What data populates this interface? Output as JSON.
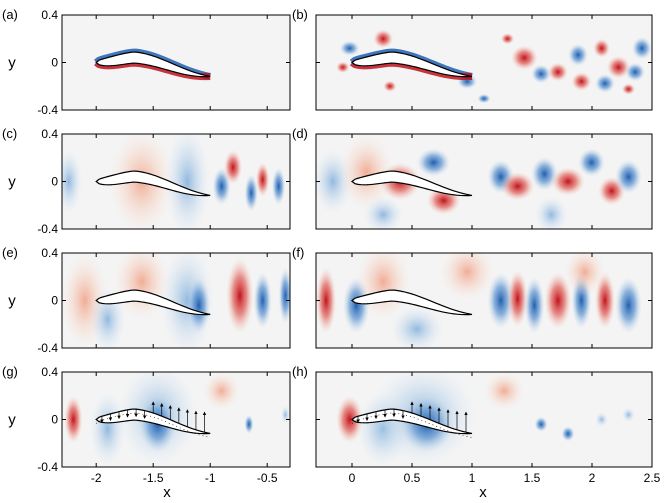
{
  "chart_data": {
    "type": "heatmap",
    "description_free": true,
    "colormap": {
      "negative": "#1f5fb0",
      "zero": "#f5f5f5",
      "positive": "#c0121b"
    },
    "panels": [
      {
        "id": "a",
        "label": "(a)",
        "xlim": [
          -2.3,
          -0.3
        ],
        "ylim": [
          -0.4,
          0.4
        ],
        "yticks": [
          "0.4",
          "0",
          "-0.4"
        ],
        "ylabel": "y",
        "show_body": true,
        "show_arrows": false
      },
      {
        "id": "b",
        "label": "(b)",
        "xlim": [
          -0.3,
          2.5
        ],
        "ylim": [
          -0.4,
          0.4
        ],
        "yticks": [],
        "ylabel": "",
        "show_body": true,
        "show_arrows": false
      },
      {
        "id": "c",
        "label": "(c)",
        "xlim": [
          -2.3,
          -0.3
        ],
        "ylim": [
          -0.4,
          0.4
        ],
        "yticks": [
          "0.4",
          "0",
          "-0.4"
        ],
        "ylabel": "y",
        "show_body": true,
        "show_arrows": false
      },
      {
        "id": "d",
        "label": "(d)",
        "xlim": [
          -0.3,
          2.5
        ],
        "ylim": [
          -0.4,
          0.4
        ],
        "yticks": [],
        "ylabel": "",
        "show_body": true,
        "show_arrows": false
      },
      {
        "id": "e",
        "label": "(e)",
        "xlim": [
          -2.3,
          -0.3
        ],
        "ylim": [
          -0.4,
          0.4
        ],
        "yticks": [
          "0.4",
          "0",
          "-0.4"
        ],
        "ylabel": "y",
        "show_body": true,
        "show_arrows": false
      },
      {
        "id": "f",
        "label": "(f)",
        "xlim": [
          -0.3,
          2.5
        ],
        "ylim": [
          -0.4,
          0.4
        ],
        "yticks": [],
        "ylabel": "",
        "show_body": true,
        "show_arrows": false
      },
      {
        "id": "g",
        "label": "(g)",
        "xlim": [
          -2.3,
          -0.3
        ],
        "ylim": [
          -0.4,
          0.4
        ],
        "yticks": [
          "0.4",
          "0",
          "-0.4"
        ],
        "ylabel": "y",
        "show_body": true,
        "show_arrows": true
      },
      {
        "id": "h",
        "label": "(h)",
        "xlim": [
          -0.3,
          2.5
        ],
        "ylim": [
          -0.4,
          0.4
        ],
        "yticks": [],
        "ylabel": "",
        "show_body": true,
        "show_arrows": true
      }
    ],
    "left_xticks": {
      "values": [
        -2,
        -1.5,
        -1,
        -0.5
      ],
      "labels": [
        "-2",
        "-1.5",
        "-1",
        "-0.5"
      ]
    },
    "right_xticks": {
      "values": [
        0,
        0.5,
        1,
        1.5,
        2,
        2.5
      ],
      "labels": [
        "0",
        "0.5",
        "1",
        "1.5",
        "2",
        "2.5"
      ]
    },
    "xlabel": "x"
  }
}
